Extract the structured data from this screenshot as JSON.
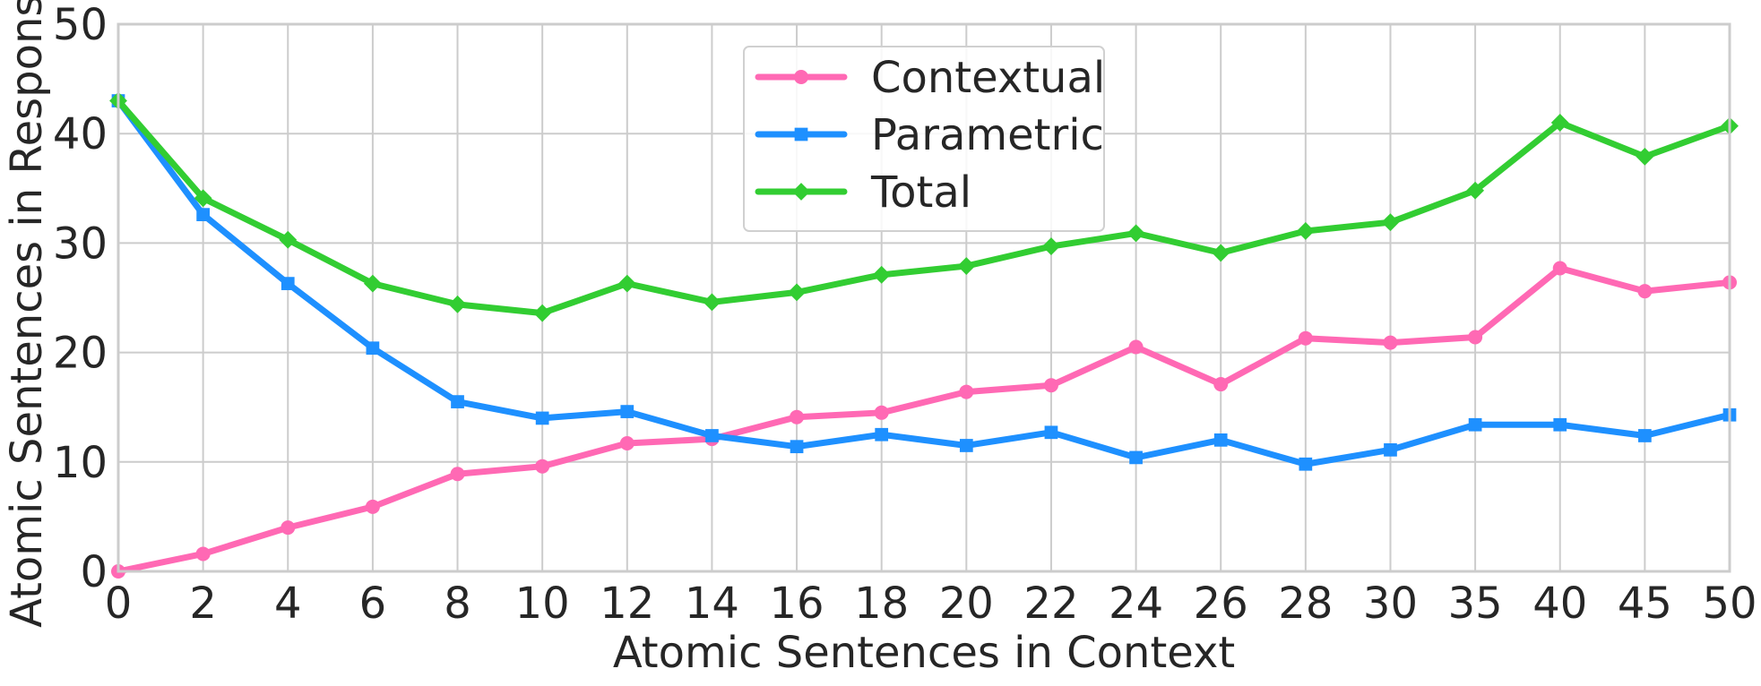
{
  "chart_data": {
    "type": "line",
    "xlabel": "Atomic Sentences in Context",
    "ylabel": "Atomic Sentences in Response",
    "categories": [
      "0",
      "2",
      "4",
      "6",
      "8",
      "10",
      "12",
      "14",
      "16",
      "18",
      "20",
      "22",
      "24",
      "26",
      "28",
      "30",
      "35",
      "40",
      "45",
      "50"
    ],
    "ylim": [
      0,
      50
    ],
    "yticks": [
      "0",
      "10",
      "20",
      "30",
      "40",
      "50"
    ],
    "grid": true,
    "legend_position": "top-center",
    "series": [
      {
        "name": "Contextual",
        "color": "#ff69b4",
        "marker": "circle",
        "values": [
          0.0,
          1.6,
          4.0,
          5.9,
          8.9,
          9.6,
          11.7,
          12.1,
          14.1,
          14.5,
          16.4,
          17.0,
          20.5,
          17.1,
          21.3,
          20.9,
          21.4,
          27.7,
          25.6,
          26.4
        ]
      },
      {
        "name": "Parametric",
        "color": "#1e90ff",
        "marker": "square",
        "values": [
          43.0,
          32.6,
          26.3,
          20.4,
          15.5,
          14.0,
          14.6,
          12.4,
          11.4,
          12.5,
          11.5,
          12.7,
          10.4,
          12.0,
          9.8,
          11.1,
          13.4,
          13.4,
          12.4,
          14.3
        ]
      },
      {
        "name": "Total",
        "color": "#32cd32",
        "marker": "diamond",
        "values": [
          43.0,
          34.1,
          30.3,
          26.3,
          24.4,
          23.6,
          26.3,
          24.6,
          25.5,
          27.1,
          27.9,
          29.7,
          30.9,
          29.1,
          31.1,
          31.9,
          34.8,
          41.0,
          37.9,
          40.7
        ]
      }
    ]
  }
}
